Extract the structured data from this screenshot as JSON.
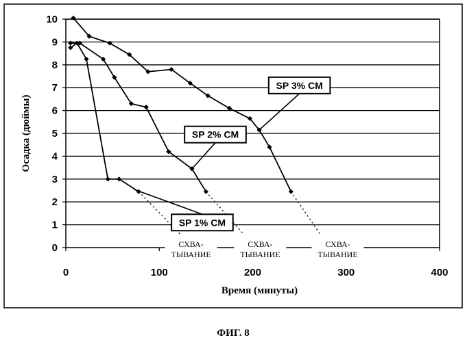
{
  "chart_data": {
    "type": "line",
    "xlabel": "Время (минуты)",
    "ylabel": "Осадка (дюймы)",
    "xlim": [
      0,
      400
    ],
    "ylim": [
      0,
      10
    ],
    "x_ticks": [
      "0",
      "100",
      "200",
      "300",
      "400"
    ],
    "y_ticks": [
      "0",
      "1",
      "2",
      "3",
      "4",
      "5",
      "6",
      "7",
      "8",
      "9",
      "10"
    ],
    "grid": "horizontal",
    "series": [
      {
        "name": "SP 1% CM",
        "x": [
          5,
          12,
          22,
          45,
          57,
          78
        ],
        "y": [
          8.75,
          8.95,
          8.25,
          3.0,
          3.0,
          2.45
        ]
      },
      {
        "name": "SP 2% CM",
        "x": [
          5,
          15,
          40,
          52,
          70,
          86,
          110,
          135,
          150
        ],
        "y": [
          8.95,
          8.95,
          8.25,
          7.45,
          6.3,
          6.15,
          4.2,
          3.45,
          2.45
        ]
      },
      {
        "name": "SP 3% CM",
        "x": [
          8,
          25,
          47,
          68,
          88,
          113,
          133,
          152,
          175,
          197,
          207,
          218,
          241
        ],
        "y": [
          10.05,
          9.25,
          8.95,
          8.45,
          7.7,
          7.8,
          7.2,
          6.65,
          6.1,
          5.65,
          5.15,
          4.4,
          2.45
        ]
      }
    ],
    "setting_label": "СХВА-\nТЫВАНИЕ",
    "setting_extensions": [
      {
        "from": [
          78,
          2.45
        ],
        "to": [
          122,
          0.6
        ]
      },
      {
        "from": [
          150,
          2.45
        ],
        "to": [
          190,
          0.6
        ]
      },
      {
        "from": [
          241,
          2.45
        ],
        "to": [
          272,
          0.6
        ]
      }
    ],
    "setting_label_x": [
      134,
      208,
      291
    ],
    "callouts": [
      {
        "series": 0,
        "point": [
          73,
          2.55
        ],
        "box_center": [
          146,
          1.1
        ]
      },
      {
        "series": 1,
        "point": [
          135,
          3.45
        ],
        "box_center": [
          160,
          4.95
        ]
      },
      {
        "series": 2,
        "point": [
          207,
          5.15
        ],
        "box_center": [
          250,
          7.1
        ]
      }
    ]
  },
  "figure_caption": "ФИГ. 8"
}
